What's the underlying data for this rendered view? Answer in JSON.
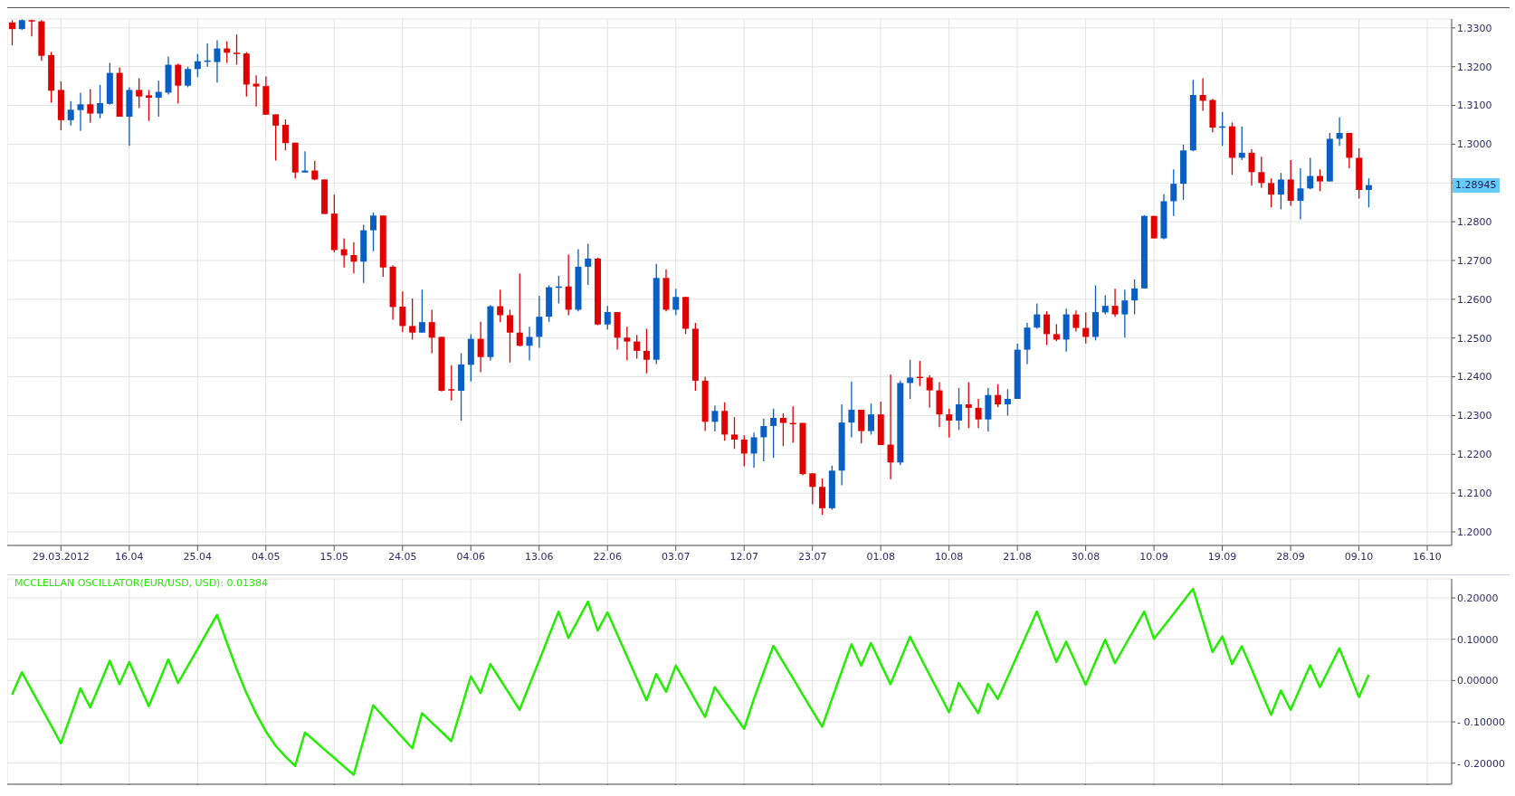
{
  "chart_data": [
    {
      "type": "candlestick",
      "categories": [
        null,
        null,
        null,
        null,
        null,
        "29.03.2012",
        null,
        null,
        null,
        null,
        null,
        null,
        "16.04",
        null,
        null,
        null,
        null,
        null,
        null,
        "25.04",
        null,
        null,
        null,
        null,
        null,
        null,
        "04.05",
        null,
        null,
        null,
        null,
        null,
        null,
        "15.05",
        null,
        null,
        null,
        null,
        null,
        null,
        "24.05",
        null,
        null,
        null,
        null,
        null,
        null,
        "04.06",
        null,
        null,
        null,
        null,
        null,
        null,
        "13.06",
        null,
        null,
        null,
        null,
        null,
        null,
        "22.06",
        null,
        null,
        null,
        null,
        null,
        null,
        "03.07",
        null,
        null,
        null,
        null,
        null,
        null,
        "12.07",
        null,
        null,
        null,
        null,
        null,
        null,
        "23.07",
        null,
        null,
        null,
        null,
        null,
        null,
        "01.08",
        null,
        null,
        null,
        null,
        null,
        null,
        "10.08",
        null,
        null,
        null,
        null,
        null,
        null,
        "21.08",
        null,
        null,
        null,
        null,
        null,
        null,
        "30.08",
        null,
        null,
        null,
        null,
        null,
        null,
        "10.09",
        null,
        null,
        null,
        null,
        null,
        null,
        "19.09",
        null,
        null,
        null,
        null,
        null,
        null,
        "28.09",
        null,
        null,
        null,
        null,
        null,
        null,
        "09.10",
        null,
        null,
        null,
        null,
        null,
        null,
        "16.10",
        null,
        null
      ],
      "ohlc": [
        [
          1.3314,
          1.332,
          1.3255,
          1.3297
        ],
        [
          1.3297,
          1.3322,
          1.3295,
          1.332
        ],
        [
          1.332,
          1.3321,
          1.3278,
          1.3317
        ],
        [
          1.3317,
          1.332,
          1.3215,
          1.3228
        ],
        [
          1.323,
          1.3238,
          1.3107,
          1.3138
        ],
        [
          1.314,
          1.3162,
          1.3036,
          1.3062
        ],
        [
          1.3062,
          1.3111,
          1.3048,
          1.3089
        ],
        [
          1.3088,
          1.3133,
          1.3034,
          1.3103
        ],
        [
          1.3103,
          1.3142,
          1.3055,
          1.3079
        ],
        [
          1.3079,
          1.3153,
          1.3067,
          1.3106
        ],
        [
          1.3104,
          1.321,
          1.3102,
          1.3184
        ],
        [
          1.3184,
          1.3198,
          1.3071,
          1.3071
        ],
        [
          1.3071,
          1.3147,
          1.2996,
          1.314
        ],
        [
          1.314,
          1.317,
          1.3093,
          1.3123
        ],
        [
          1.3126,
          1.314,
          1.306,
          1.312
        ],
        [
          1.312,
          1.3164,
          1.3071,
          1.3135
        ],
        [
          1.3133,
          1.3226,
          1.3128,
          1.3205
        ],
        [
          1.3205,
          1.3208,
          1.3105,
          1.3151
        ],
        [
          1.3151,
          1.32,
          1.3147,
          1.3194
        ],
        [
          1.3194,
          1.3233,
          1.3173,
          1.3214
        ],
        [
          1.3214,
          1.326,
          1.32,
          1.3216
        ],
        [
          1.3212,
          1.3268,
          1.3159,
          1.3247
        ],
        [
          1.3247,
          1.3266,
          1.321,
          1.3236
        ],
        [
          1.3236,
          1.3283,
          1.3205,
          1.3233
        ],
        [
          1.3234,
          1.3238,
          1.3123,
          1.3154
        ],
        [
          1.3156,
          1.3178,
          1.3097,
          1.3149
        ],
        [
          1.315,
          1.3175,
          1.3076,
          1.3076
        ],
        [
          1.3077,
          1.3077,
          1.2958,
          1.3048
        ],
        [
          1.305,
          1.3064,
          1.2984,
          1.3003
        ],
        [
          1.3004,
          1.3004,
          1.2912,
          1.2927
        ],
        [
          1.2927,
          1.2982,
          1.2927,
          1.2932
        ],
        [
          1.2932,
          1.2957,
          1.2907,
          1.2909
        ],
        [
          1.2909,
          1.2909,
          1.282,
          1.282
        ],
        [
          1.2821,
          1.287,
          1.2721,
          1.2727
        ],
        [
          1.2729,
          1.2757,
          1.2682,
          1.2713
        ],
        [
          1.2714,
          1.2747,
          1.2667,
          1.2697
        ],
        [
          1.2697,
          1.2792,
          1.2642,
          1.2778
        ],
        [
          1.2778,
          1.2824,
          1.2724,
          1.2816
        ],
        [
          1.2816,
          1.2816,
          1.2658,
          1.2682
        ],
        [
          1.2684,
          1.2688,
          1.2547,
          1.258
        ],
        [
          1.2581,
          1.262,
          1.2515,
          1.2531
        ],
        [
          1.2531,
          1.2602,
          1.2496,
          1.2514
        ],
        [
          1.2514,
          1.2625,
          1.2514,
          1.2541
        ],
        [
          1.2541,
          1.2573,
          1.2461,
          1.2501
        ],
        [
          1.2503,
          1.2503,
          1.2362,
          1.2364
        ],
        [
          1.2368,
          1.243,
          1.2339,
          1.2366
        ],
        [
          1.2364,
          1.2461,
          1.2287,
          1.2432
        ],
        [
          1.2431,
          1.251,
          1.2388,
          1.2498
        ],
        [
          1.2498,
          1.2542,
          1.2412,
          1.2451
        ],
        [
          1.2451,
          1.2585,
          1.2442,
          1.2582
        ],
        [
          1.2582,
          1.2625,
          1.2541,
          1.2559
        ],
        [
          1.2559,
          1.2573,
          1.2437,
          1.2514
        ],
        [
          1.2514,
          1.2667,
          1.2479,
          1.248
        ],
        [
          1.248,
          1.2529,
          1.2442,
          1.2503
        ],
        [
          1.2503,
          1.2609,
          1.2475,
          1.2555
        ],
        [
          1.2555,
          1.2636,
          1.2542,
          1.2631
        ],
        [
          1.2631,
          1.2661,
          1.2589,
          1.2633
        ],
        [
          1.2633,
          1.2715,
          1.2559,
          1.2573
        ],
        [
          1.2573,
          1.2729,
          1.2569,
          1.2684
        ],
        [
          1.2684,
          1.2743,
          1.2637,
          1.2705
        ],
        [
          1.2705,
          1.2707,
          1.2533,
          1.2535
        ],
        [
          1.2535,
          1.2583,
          1.2522,
          1.2567
        ],
        [
          1.2567,
          1.2567,
          1.247,
          1.2501
        ],
        [
          1.2501,
          1.2529,
          1.2442,
          1.2491
        ],
        [
          1.2491,
          1.2508,
          1.2447,
          1.2467
        ],
        [
          1.2467,
          1.2524,
          1.2409,
          1.2444
        ],
        [
          1.2444,
          1.2691,
          1.2433,
          1.2655
        ],
        [
          1.2655,
          1.2677,
          1.2569,
          1.2573
        ],
        [
          1.2573,
          1.2627,
          1.2559,
          1.2606
        ],
        [
          1.2606,
          1.2606,
          1.251,
          1.2524
        ],
        [
          1.2524,
          1.2539,
          1.2364,
          1.239
        ],
        [
          1.239,
          1.24,
          1.226,
          1.2284
        ],
        [
          1.2284,
          1.2326,
          1.2259,
          1.2312
        ],
        [
          1.2312,
          1.2334,
          1.2235,
          1.2251
        ],
        [
          1.2251,
          1.2296,
          1.2214,
          1.2238
        ],
        [
          1.2238,
          1.2249,
          1.2169,
          1.2202
        ],
        [
          1.2202,
          1.2256,
          1.2165,
          1.2244
        ],
        [
          1.2244,
          1.2292,
          1.2182,
          1.2273
        ],
        [
          1.2273,
          1.2318,
          1.2191,
          1.2294
        ],
        [
          1.2294,
          1.2306,
          1.2221,
          1.2281
        ],
        [
          1.2281,
          1.2324,
          1.223,
          1.2279
        ],
        [
          1.2281,
          1.2281,
          1.2146,
          1.2149
        ],
        [
          1.2151,
          1.2151,
          1.2071,
          1.2116
        ],
        [
          1.2116,
          1.2138,
          1.2044,
          1.2061
        ],
        [
          1.2061,
          1.2171,
          1.2057,
          1.2158
        ],
        [
          1.2158,
          1.2329,
          1.212,
          1.2282
        ],
        [
          1.2282,
          1.2388,
          1.2244,
          1.2315
        ],
        [
          1.2315,
          1.2315,
          1.2228,
          1.226
        ],
        [
          1.226,
          1.2331,
          1.2251,
          1.2303
        ],
        [
          1.2303,
          1.2336,
          1.2224,
          1.2224
        ],
        [
          1.2225,
          1.2406,
          1.2136,
          1.2179
        ],
        [
          1.2179,
          1.239,
          1.2172,
          1.2384
        ],
        [
          1.2384,
          1.2444,
          1.2343,
          1.2398
        ],
        [
          1.24,
          1.2441,
          1.2376,
          1.2398
        ],
        [
          1.2398,
          1.2404,
          1.2321,
          1.2365
        ],
        [
          1.2365,
          1.2386,
          1.227,
          1.2303
        ],
        [
          1.2303,
          1.2318,
          1.2243,
          1.2287
        ],
        [
          1.2287,
          1.2371,
          1.2263,
          1.2329
        ],
        [
          1.2329,
          1.2386,
          1.2268,
          1.232
        ],
        [
          1.232,
          1.2343,
          1.2268,
          1.229
        ],
        [
          1.229,
          1.2371,
          1.2259,
          1.2353
        ],
        [
          1.2353,
          1.2381,
          1.2322,
          1.2329
        ],
        [
          1.2329,
          1.2368,
          1.23,
          1.2343
        ],
        [
          1.2343,
          1.2486,
          1.2343,
          1.247
        ],
        [
          1.247,
          1.2539,
          1.2433,
          1.2527
        ],
        [
          1.2527,
          1.2589,
          1.2524,
          1.2561
        ],
        [
          1.2561,
          1.2569,
          1.2482,
          1.251
        ],
        [
          1.251,
          1.2536,
          1.2492,
          1.2496
        ],
        [
          1.2496,
          1.2576,
          1.2465,
          1.2561
        ],
        [
          1.2561,
          1.2571,
          1.2517,
          1.2526
        ],
        [
          1.2526,
          1.2566,
          1.2486,
          1.2503
        ],
        [
          1.2503,
          1.2636,
          1.2494,
          1.2567
        ],
        [
          1.2566,
          1.261,
          1.2561,
          1.2583
        ],
        [
          1.2583,
          1.2627,
          1.2555,
          1.2561
        ],
        [
          1.2561,
          1.2625,
          1.2501,
          1.2597
        ],
        [
          1.2597,
          1.2651,
          1.2561,
          1.2628
        ],
        [
          1.2628,
          1.2817,
          1.2628,
          1.2815
        ],
        [
          1.2815,
          1.2815,
          1.2757,
          1.2757
        ],
        [
          1.2757,
          1.2871,
          1.2755,
          1.2853
        ],
        [
          1.2853,
          1.2935,
          1.2815,
          1.2898
        ],
        [
          1.2898,
          1.2999,
          1.2856,
          1.2984
        ],
        [
          1.2984,
          1.3166,
          1.2982,
          1.3127
        ],
        [
          1.3127,
          1.317,
          1.3086,
          1.3112
        ],
        [
          1.3114,
          1.3117,
          1.3031,
          1.3043
        ],
        [
          1.3043,
          1.3083,
          1.2996,
          1.3046
        ],
        [
          1.3046,
          1.3056,
          1.2921,
          1.2965
        ],
        [
          1.2965,
          1.3046,
          1.2959,
          1.2978
        ],
        [
          1.2978,
          1.2987,
          1.2893,
          1.2928
        ],
        [
          1.2928,
          1.2968,
          1.2888,
          1.29
        ],
        [
          1.29,
          1.2912,
          1.2837,
          1.287
        ],
        [
          1.287,
          1.2926,
          1.2832,
          1.2909
        ],
        [
          1.2909,
          1.2959,
          1.2841,
          1.2854
        ],
        [
          1.2854,
          1.2938,
          1.2806,
          1.2886
        ],
        [
          1.2886,
          1.2965,
          1.2884,
          1.2918
        ],
        [
          1.2918,
          1.2935,
          1.2879,
          1.2904
        ],
        [
          1.2904,
          1.3029,
          1.2904,
          1.3014
        ],
        [
          1.3014,
          1.307,
          1.2996,
          1.3029
        ],
        [
          1.3029,
          1.3029,
          1.2938,
          1.2965
        ],
        [
          1.2965,
          1.299,
          1.286,
          1.2882
        ],
        [
          1.2882,
          1.2912,
          1.2837,
          1.28945
        ],
        null,
        null,
        null,
        null,
        null,
        null,
        null,
        null
      ],
      "colors": [
        "#e00000",
        "#0a5fc4",
        "#e00000",
        "#e00000",
        "#e00000",
        "#e00000",
        "#0a5fc4",
        "#0a5fc4",
        "#e00000",
        "#0a5fc4",
        "#0a5fc4",
        "#e00000",
        "#0a5fc4",
        "#e00000",
        "#e00000",
        "#0a5fc4",
        "#0a5fc4",
        "#e00000",
        "#0a5fc4",
        "#0a5fc4",
        "#0a5fc4",
        "#0a5fc4",
        "#e00000",
        "#e00000",
        "#e00000",
        "#e00000",
        "#e00000",
        "#e00000",
        "#e00000",
        "#e00000",
        "#0a5fc4",
        "#e00000",
        "#e00000",
        "#e00000",
        "#e00000",
        "#e00000",
        "#0a5fc4",
        "#0a5fc4",
        "#e00000",
        "#e00000",
        "#e00000",
        "#e00000",
        "#0a5fc4",
        "#e00000",
        "#e00000",
        "#e00000",
        "#0a5fc4",
        "#0a5fc4",
        "#e00000",
        "#0a5fc4",
        "#e00000",
        "#e00000",
        "#e00000",
        "#0a5fc4",
        "#0a5fc4",
        "#0a5fc4",
        "#0a5fc4",
        "#e00000",
        "#0a5fc4",
        "#0a5fc4",
        "#e00000",
        "#0a5fc4",
        "#e00000",
        "#e00000",
        "#e00000",
        "#e00000",
        "#0a5fc4",
        "#e00000",
        "#0a5fc4",
        "#e00000",
        "#e00000",
        "#e00000",
        "#0a5fc4",
        "#e00000",
        "#e00000",
        "#e00000",
        "#0a5fc4",
        "#0a5fc4",
        "#0a5fc4",
        "#e00000",
        "#e00000",
        "#e00000",
        "#e00000",
        "#e00000",
        "#0a5fc4",
        "#0a5fc4",
        "#0a5fc4",
        "#e00000",
        "#0a5fc4",
        "#e00000",
        "#e00000",
        "#0a5fc4",
        "#0a5fc4",
        "#e00000",
        "#e00000",
        "#e00000",
        "#e00000",
        "#0a5fc4",
        "#e00000",
        "#e00000",
        "#0a5fc4",
        "#e00000",
        "#0a5fc4",
        "#0a5fc4",
        "#0a5fc4",
        "#0a5fc4",
        "#e00000",
        "#e00000",
        "#0a5fc4",
        "#e00000",
        "#e00000",
        "#0a5fc4",
        "#0a5fc4",
        "#e00000",
        "#0a5fc4",
        "#0a5fc4",
        "#0a5fc4",
        "#e00000",
        "#0a5fc4",
        "#0a5fc4",
        "#0a5fc4",
        "#0a5fc4",
        "#e00000",
        "#e00000",
        "#0a5fc4",
        "#e00000",
        "#0a5fc4",
        "#e00000",
        "#e00000",
        "#e00000",
        "#0a5fc4",
        "#e00000",
        "#0a5fc4",
        "#0a5fc4",
        "#e00000",
        "#0a5fc4",
        "#0a5fc4",
        "#e00000",
        "#e00000",
        "#0a5fc4",
        null,
        null,
        null,
        null,
        null,
        null,
        null,
        null
      ],
      "ylim": [
        1.1965,
        1.3323
      ],
      "yticks": [
        {
          "value": 1.2,
          "label": "1.2000"
        },
        {
          "value": 1.21,
          "label": "1.2100"
        },
        {
          "value": 1.22,
          "label": "1.2200"
        },
        {
          "value": 1.23,
          "label": "1.2300"
        },
        {
          "value": 1.24,
          "label": "1.2400"
        },
        {
          "value": 1.25,
          "label": "1.2500"
        },
        {
          "value": 1.26,
          "label": "1.2600"
        },
        {
          "value": 1.27,
          "label": "1.2700"
        },
        {
          "value": 1.28,
          "label": "1.2800"
        },
        {
          "value": 1.29,
          "label": null
        },
        {
          "value": 1.3,
          "label": "1.3000"
        },
        {
          "value": 1.31,
          "label": "1.3100"
        },
        {
          "value": 1.32,
          "label": "1.3200"
        },
        {
          "value": 1.33,
          "label": "1.3300"
        }
      ],
      "grid": true,
      "annotations": [
        "1.28945"
      ]
    },
    {
      "type": "line",
      "title": "MCCLELLAN OSCILLATOR(EUR/USD, USD): 0.01384",
      "categories": [
        null,
        null,
        null,
        null,
        null,
        "29.03.2012",
        null,
        null,
        null,
        null,
        null,
        null,
        "16.04",
        null,
        null,
        null,
        null,
        null,
        null,
        "25.04",
        null,
        null,
        null,
        null,
        null,
        null,
        "04.05",
        null,
        null,
        null,
        null,
        null,
        null,
        "15.05",
        null,
        null,
        null,
        null,
        null,
        null,
        "24.05",
        null,
        null,
        null,
        null,
        null,
        null,
        "04.06",
        null,
        null,
        null,
        null,
        null,
        null,
        "13.06",
        null,
        null,
        null,
        null,
        null,
        null,
        "22.06",
        null,
        null,
        null,
        null,
        null,
        null,
        "03.07",
        null,
        null,
        null,
        null,
        null,
        null,
        "12.07",
        null,
        null,
        null,
        null,
        null,
        null,
        "23.07",
        null,
        null,
        null,
        null,
        null,
        null,
        "01.08",
        null,
        null,
        null,
        null,
        null,
        null,
        "10.08",
        null,
        null,
        null,
        null,
        null,
        null,
        "21.08",
        null,
        null,
        null,
        null,
        null,
        null,
        "30.08",
        null,
        null,
        null,
        null,
        null,
        null,
        "10.09",
        null,
        null,
        null,
        null,
        null,
        null,
        "19.09",
        null,
        null,
        null,
        null,
        null,
        null,
        "28.09",
        null,
        null,
        null,
        null,
        null,
        null,
        "09.10",
        null,
        null,
        null,
        null,
        null,
        null,
        "16.10",
        null,
        null
      ],
      "series": [
        {
          "color": "#22ee00",
          "values": [
            -0.034,
            0.02,
            -0.023,
            -0.066,
            -0.109,
            -0.152,
            -0.086,
            -0.019,
            -0.065,
            -0.009,
            0.048,
            -0.009,
            0.045,
            -0.009,
            -0.062,
            -0.006,
            0.051,
            -0.006,
            0.035,
            0.076,
            0.118,
            0.159,
            0.092,
            0.028,
            -0.03,
            -0.08,
            -0.123,
            -0.158,
            -0.184,
            -0.207,
            -0.126,
            -0.146,
            -0.167,
            -0.187,
            -0.208,
            -0.228,
            -0.144,
            -0.06,
            -0.086,
            -0.112,
            -0.138,
            -0.164,
            -0.079,
            -0.102,
            -0.124,
            -0.147,
            -0.069,
            0.01,
            -0.03,
            0.04,
            0.003,
            -0.034,
            -0.071,
            -0.011,
            0.048,
            0.108,
            0.167,
            0.103,
            0.147,
            0.191,
            0.121,
            0.165,
            0.112,
            0.059,
            0.005,
            -0.048,
            0.016,
            -0.027,
            0.036,
            -0.005,
            -0.047,
            -0.088,
            -0.016,
            -0.05,
            -0.083,
            -0.117,
            -0.045,
            0.02,
            0.084,
            0.045,
            0.006,
            -0.034,
            -0.073,
            -0.112,
            -0.045,
            0.022,
            0.088,
            0.036,
            0.091,
            0.041,
            -0.009,
            0.049,
            0.106,
            0.06,
            0.014,
            -0.031,
            -0.077,
            -0.006,
            -0.043,
            -0.079,
            -0.008,
            -0.045,
            0.008,
            0.061,
            0.114,
            0.167,
            0.106,
            0.045,
            0.094,
            0.042,
            -0.01,
            0.045,
            0.099,
            0.042,
            0.084,
            0.125,
            0.167,
            0.101,
            0.131,
            0.161,
            0.192,
            0.222,
            0.146,
            0.069,
            0.107,
            0.04,
            0.083,
            0.028,
            -0.028,
            -0.083,
            -0.024,
            -0.071,
            -0.017,
            0.037,
            -0.016,
            0.031,
            0.078,
            0.019,
            -0.04,
            0.01384,
            null,
            null,
            null,
            null,
            null,
            null,
            null,
            null
          ]
        }
      ],
      "ylim": [
        -0.251,
        0.246
      ],
      "yticks": [
        {
          "value": -0.2,
          "label": "- 0.20000"
        },
        {
          "value": -0.1,
          "label": "- 0.10000"
        },
        {
          "value": 0,
          "label": "0.00000"
        },
        {
          "value": 0.1,
          "label": "0.10000"
        },
        {
          "value": 0.2,
          "label": "0.20000"
        }
      ],
      "grid": true,
      "tick_labels": "y",
      "marker": "none",
      "line_style": "solid"
    }
  ]
}
